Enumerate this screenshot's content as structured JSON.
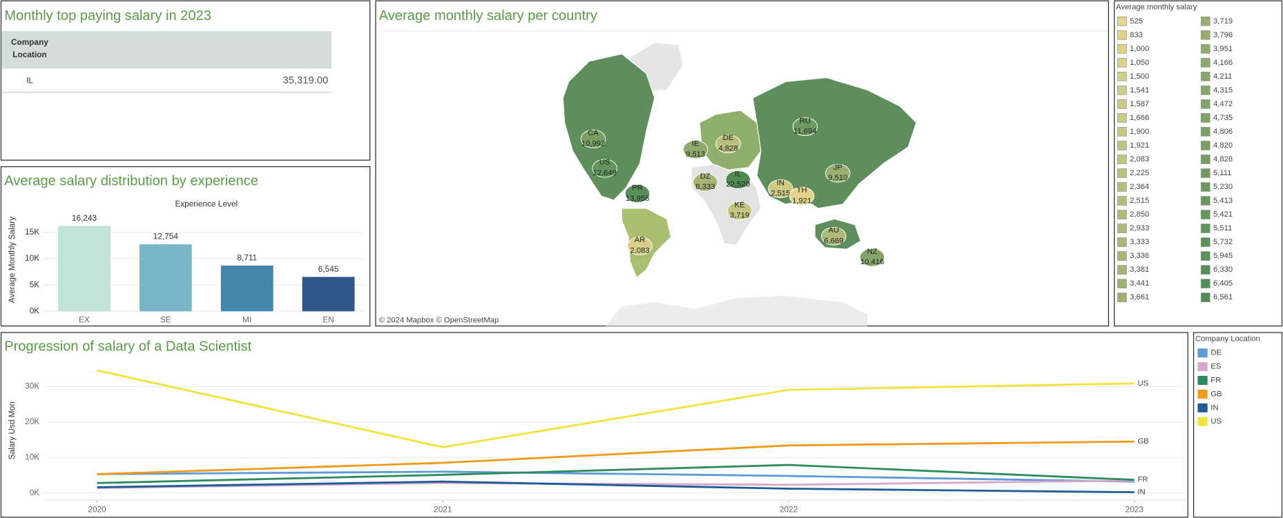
{
  "table": {
    "title": "Monthly top paying salary in 2023",
    "columns": [
      "Company Location"
    ],
    "rows": [
      [
        "IL",
        "35,319.00"
      ]
    ]
  },
  "map": {
    "title": "Average monthly salary per country",
    "countries": [
      "CA",
      "US",
      "PR",
      "AR",
      "IE",
      "DE",
      "DZ",
      "IL",
      "KE",
      "RU",
      "JP",
      "IN",
      "TH",
      "AU",
      "NZ"
    ],
    "values": [
      10992,
      12649,
      13958,
      2083,
      9513,
      4828,
      8333,
      22520,
      3719,
      11694,
      9510,
      2515,
      1921,
      6669,
      10416
    ],
    "value_labels": [
      "10,992",
      "12,649",
      "13,958",
      "2,083",
      "9,513",
      "4,828",
      "8,333",
      "22,520",
      "3,719",
      "11,694",
      "9,510",
      "2,515",
      "1,921",
      "6,669",
      "10,416"
    ],
    "color_range": [
      "#e3d58c",
      "#4f8a55"
    ],
    "attribution": "© 2024 Mapbox © OpenStreetMap"
  },
  "map_legend": {
    "title": "Average monthly salary",
    "labels": [
      "525",
      "833",
      "1,000",
      "1,050",
      "1,500",
      "1,541",
      "1,587",
      "1,666",
      "1,900",
      "1,921",
      "2,083",
      "2,225",
      "2,364",
      "2,515",
      "2,850",
      "2,933",
      "3,333",
      "3,336",
      "3,381",
      "3,441",
      "3,661",
      "3,719",
      "3,796",
      "3,951",
      "4,166",
      "4,211",
      "4,315",
      "4,472",
      "4,735",
      "4,806",
      "4,820",
      "4,828",
      "5,111",
      "5,230",
      "5,413",
      "5,421",
      "5,511",
      "5,732",
      "5,945",
      "6,330",
      "6,405",
      "6,561"
    ]
  },
  "chart_data": [
    {
      "type": "bar",
      "title": "Average salary distribution by experience",
      "column_header": "Experience Level",
      "y_label": "Average Monthly Salary",
      "categories": [
        "EX",
        "SE",
        "MI",
        "EN"
      ],
      "values": [
        16243,
        12754,
        8711,
        6545
      ],
      "value_labels": [
        "16,243",
        "12,754",
        "8,711",
        "6,545"
      ],
      "colors": [
        "#c0e4da",
        "#79b7c8",
        "#4287ab",
        "#2e5787"
      ],
      "ylim": [
        0,
        18500
      ],
      "yticks": [
        {
          "value": 0,
          "label": "0K"
        },
        {
          "value": 5000,
          "label": "5K"
        },
        {
          "value": 10000,
          "label": "10K"
        },
        {
          "value": 15000,
          "label": "15K"
        }
      ],
      "grid": true
    },
    {
      "type": "line",
      "title": "Progression of salary of a Data Scientist",
      "y_label": "Salary Usd Mon",
      "x": [
        2020,
        2021,
        2022,
        2023
      ],
      "xlim": [
        2019.85,
        2023.15
      ],
      "xticks": [
        2020,
        2021,
        2022,
        2023
      ],
      "ylim": [
        -2000,
        36500
      ],
      "yticks": [
        {
          "value": 0,
          "label": "0K"
        },
        {
          "value": 10000,
          "label": "10K"
        },
        {
          "value": 20000,
          "label": "20K"
        },
        {
          "value": 30000,
          "label": "30K"
        }
      ],
      "grid": true,
      "legend_title": "Company Location",
      "series": [
        {
          "name": "DE",
          "color": "#5b9bd8",
          "values": [
            5300,
            6000,
            4800,
            3200
          ],
          "end_label": false
        },
        {
          "name": "ES",
          "color": "#d8a8cc",
          "values": [
            1400,
            2800,
            2300,
            3500
          ],
          "end_label": false
        },
        {
          "name": "FR",
          "color": "#2f8a60",
          "values": [
            2800,
            5100,
            7900,
            3700
          ],
          "end_label": true
        },
        {
          "name": "GB",
          "color": "#f09a1c",
          "values": [
            5300,
            8500,
            13400,
            14500
          ],
          "end_label": true
        },
        {
          "name": "IN",
          "color": "#1f5c96",
          "values": [
            1600,
            3200,
            1200,
            200
          ],
          "end_label": true
        },
        {
          "name": "US",
          "color": "#f2e33c",
          "values": [
            34600,
            12900,
            29100,
            30900
          ],
          "end_label": true
        }
      ]
    }
  ]
}
